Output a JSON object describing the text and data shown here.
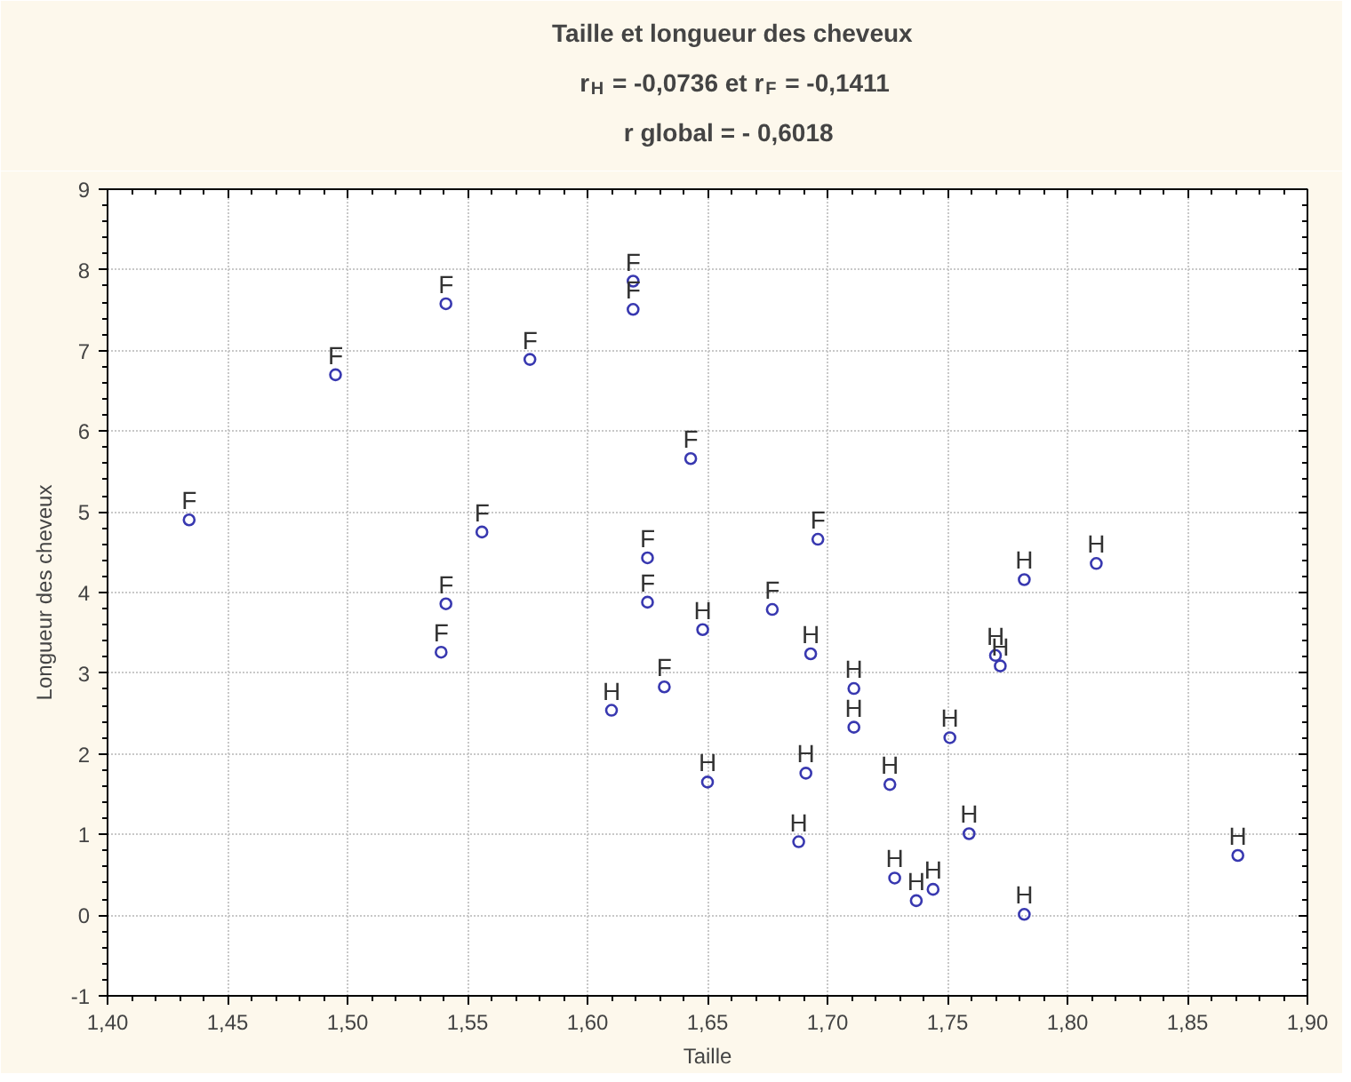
{
  "chart_data": {
    "type": "scatter",
    "title": "Taille et longueur des cheveux",
    "subtitle": "r$_{H}$ = -0,0736 et r$_{F}$ = -0,1411\nr global =  - 0,6018",
    "xlabel": "Taille",
    "ylabel": "Longueur des cheveux",
    "series": [
      {
        "name": "F",
        "color": "#3838b0",
        "x": [
          1.434,
          1.495,
          1.541,
          1.576,
          1.619,
          1.619,
          1.643,
          1.556,
          1.541,
          1.625,
          1.625,
          1.539,
          1.632,
          1.696,
          1.677
        ],
        "values": [
          4.9,
          6.7,
          7.58,
          6.89,
          7.86,
          7.51,
          5.66,
          4.75,
          3.86,
          4.43,
          3.88,
          3.26,
          2.83,
          4.66,
          3.79
        ]
      },
      {
        "name": "H",
        "color": "#3838b0",
        "x": [
          1.61,
          1.782,
          1.812,
          1.648,
          1.693,
          1.711,
          1.711,
          1.77,
          1.772,
          1.751,
          1.65,
          1.691,
          1.726,
          1.688,
          1.759,
          1.728,
          1.737,
          1.744,
          1.782,
          1.871
        ],
        "values": [
          2.54,
          4.16,
          4.36,
          3.54,
          3.24,
          2.81,
          2.33,
          3.22,
          3.09,
          2.2,
          1.65,
          1.76,
          1.62,
          0.91,
          1.01,
          0.46,
          0.18,
          0.32,
          0.01,
          0.74
        ]
      }
    ],
    "xlim": [
      1.4,
      1.9
    ],
    "xticks": [
      {
        "value": 1.4,
        "label": "1,40"
      },
      {
        "value": 1.45,
        "label": "1,45"
      },
      {
        "value": 1.5,
        "label": "1,50"
      },
      {
        "value": 1.55,
        "label": "1,55"
      },
      {
        "value": 1.6,
        "label": "1,60"
      },
      {
        "value": 1.65,
        "label": "1,65"
      },
      {
        "value": 1.7,
        "label": "1,70"
      },
      {
        "value": 1.75,
        "label": "1,75"
      },
      {
        "value": 1.8,
        "label": "1,80"
      },
      {
        "value": 1.85,
        "label": "1,85"
      },
      {
        "value": 1.9,
        "label": "1,90"
      }
    ],
    "ylim": [
      -1,
      9
    ],
    "yticks": [
      -1,
      0,
      1,
      2,
      3,
      4,
      5,
      6,
      7,
      8,
      9
    ],
    "grid": true,
    "marker": "circle"
  }
}
